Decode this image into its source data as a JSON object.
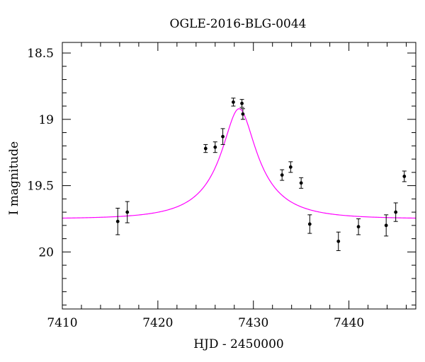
{
  "chart_data": {
    "type": "scatter",
    "title": "OGLE-2016-BLG-0044",
    "xlabel": "HJD - 2450000",
    "ylabel": "I magnitude",
    "xlim": [
      7410,
      7447
    ],
    "ylim": [
      20.43,
      18.42
    ],
    "y_inverted": true,
    "xticks": [
      7410,
      7420,
      7430,
      7440
    ],
    "yticks": [
      18.5,
      19,
      19.5,
      20
    ],
    "xtick_labels": [
      "7410",
      "7420",
      "7430",
      "7440"
    ],
    "ytick_labels": [
      "18.5",
      "19",
      "19.5",
      "20"
    ],
    "grid": false,
    "model_color": "#ff00ff",
    "point_color": "#000000",
    "model": {
      "t0": 7428.5,
      "baseline": 19.75,
      "peak": 18.92
    },
    "series": [
      {
        "x": [
          7415.8,
          7416.8,
          7425.0,
          7426.0,
          7426.8,
          7427.9,
          7428.8,
          7428.9,
          7433.0,
          7433.9,
          7435.0,
          7435.9,
          7438.9,
          7441.0,
          7443.9,
          7444.9,
          7445.8
        ],
        "y": [
          19.77,
          19.7,
          19.22,
          19.21,
          19.13,
          18.87,
          18.88,
          18.96,
          19.42,
          19.36,
          19.48,
          19.79,
          19.92,
          19.81,
          19.8,
          19.7,
          19.43
        ],
        "err": [
          0.1,
          0.08,
          0.03,
          0.04,
          0.06,
          0.03,
          0.03,
          0.04,
          0.04,
          0.04,
          0.04,
          0.07,
          0.07,
          0.06,
          0.08,
          0.07,
          0.04
        ]
      }
    ]
  }
}
